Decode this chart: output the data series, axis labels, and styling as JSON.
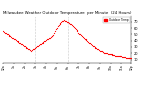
{
  "title": "Milwaukee Weather Outdoor Temperature  per Minute  (24 Hours)",
  "title_fontsize": 2.8,
  "bg_color": "#ffffff",
  "line_color": "#ff0000",
  "marker": ".",
  "markersize": 0.8,
  "ylim": [
    5,
    80
  ],
  "yticks": [
    10,
    20,
    30,
    40,
    50,
    60,
    70
  ],
  "ytick_fontsize": 2.5,
  "xtick_fontsize": 2.2,
  "vline_positions": [
    36,
    72
  ],
  "vline_color": "#999999",
  "vline_style": ":",
  "legend_label": "Outdoor Temp",
  "legend_color": "#ff0000",
  "x_values": [
    0,
    1,
    2,
    3,
    4,
    5,
    6,
    7,
    8,
    9,
    10,
    11,
    12,
    13,
    14,
    15,
    16,
    17,
    18,
    19,
    20,
    21,
    22,
    23,
    24,
    25,
    26,
    27,
    28,
    29,
    30,
    31,
    32,
    33,
    34,
    35,
    36,
    37,
    38,
    39,
    40,
    41,
    42,
    43,
    44,
    45,
    46,
    47,
    48,
    49,
    50,
    51,
    52,
    53,
    54,
    55,
    56,
    57,
    58,
    59,
    60,
    61,
    62,
    63,
    64,
    65,
    66,
    67,
    68,
    69,
    70,
    71,
    72,
    73,
    74,
    75,
    76,
    77,
    78,
    79,
    80,
    81,
    82,
    83,
    84,
    85,
    86,
    87,
    88,
    89,
    90,
    91,
    92,
    93,
    94,
    95,
    96,
    97,
    98,
    99,
    100,
    101,
    102,
    103,
    104,
    105,
    106,
    107,
    108,
    109,
    110,
    111,
    112,
    113,
    114,
    115,
    116,
    117,
    118,
    119,
    120,
    121,
    122,
    123,
    124,
    125,
    126,
    127,
    128,
    129,
    130,
    131,
    132,
    133,
    134,
    135,
    136,
    137,
    138,
    139,
    140,
    141,
    142,
    143
  ],
  "y_values": [
    55,
    54,
    53,
    52,
    51,
    50,
    49,
    48,
    47,
    46,
    45,
    44,
    43,
    42,
    41,
    40,
    39,
    38,
    37,
    36,
    35,
    34,
    33,
    32,
    31,
    30,
    29,
    28,
    27,
    26,
    25,
    24,
    25,
    26,
    27,
    28,
    29,
    30,
    31,
    32,
    33,
    34,
    35,
    36,
    37,
    38,
    39,
    40,
    41,
    42,
    43,
    44,
    45,
    46,
    47,
    48,
    49,
    52,
    55,
    58,
    61,
    63,
    65,
    67,
    68,
    70,
    71,
    72,
    73,
    72,
    71,
    70,
    70,
    69,
    68,
    67,
    66,
    65,
    63,
    62,
    60,
    58,
    57,
    55,
    53,
    51,
    50,
    49,
    47,
    46,
    44,
    43,
    42,
    41,
    40,
    38,
    37,
    36,
    35,
    33,
    32,
    31,
    30,
    29,
    28,
    27,
    26,
    25,
    24,
    24,
    23,
    22,
    22,
    21,
    21,
    20,
    20,
    19,
    19,
    18,
    18,
    18,
    17,
    17,
    17,
    16,
    16,
    16,
    16,
    15,
    15,
    15,
    15,
    14,
    14,
    14,
    14,
    13,
    13,
    13,
    13,
    13,
    12,
    12
  ],
  "xtick_positions": [
    0,
    12,
    24,
    36,
    48,
    60,
    72,
    84,
    96,
    108,
    120,
    132,
    143
  ],
  "xtick_labels": [
    "12a",
    "1a",
    "2a",
    "3a",
    "4a",
    "5a",
    "6a",
    "7a",
    "8a",
    "9a",
    "10a",
    "11a",
    "12p"
  ]
}
